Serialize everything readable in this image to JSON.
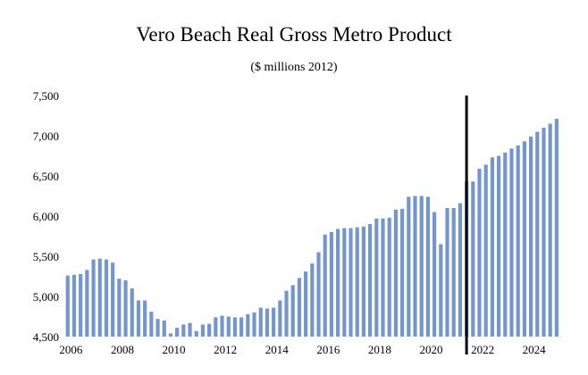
{
  "chart_data": {
    "type": "bar",
    "title": "Vero Beach Real Gross Metro Product",
    "subtitle": "($ millions 2012)",
    "xlabel": "",
    "ylabel": "",
    "ylim": [
      4500,
      7500
    ],
    "yticks": [
      4500,
      5000,
      5500,
      6000,
      6500,
      7000,
      7500
    ],
    "ytick_labels": [
      "4,500",
      "5,000",
      "5,500",
      "6,000",
      "6,500",
      "7,000",
      "7,500"
    ],
    "xticks": [
      2006,
      2008,
      2010,
      2012,
      2014,
      2016,
      2018,
      2020,
      2022,
      2024
    ],
    "x_start": 2006.0,
    "x_step": 0.25,
    "bar_color": "#7396CF",
    "marker_color": "#000000",
    "forecast_marker_x": 2021.5,
    "grid": false,
    "legend": "none",
    "values": [
      5260,
      5270,
      5280,
      5330,
      5460,
      5470,
      5460,
      5420,
      5220,
      5200,
      5100,
      4950,
      4950,
      4810,
      4720,
      4700,
      4540,
      4610,
      4650,
      4670,
      4570,
      4650,
      4660,
      4740,
      4760,
      4750,
      4740,
      4740,
      4780,
      4800,
      4860,
      4850,
      4860,
      4950,
      5070,
      5140,
      5230,
      5310,
      5410,
      5550,
      5770,
      5800,
      5840,
      5850,
      5850,
      5860,
      5870,
      5900,
      5970,
      5970,
      5980,
      6080,
      6090,
      6240,
      6250,
      6250,
      6240,
      6050,
      5650,
      6100,
      6100,
      6160,
      6430,
      6430,
      6590,
      6640,
      6730,
      6750,
      6790,
      6840,
      6880,
      6930,
      6990,
      7050,
      7100,
      7150,
      7210
    ]
  }
}
